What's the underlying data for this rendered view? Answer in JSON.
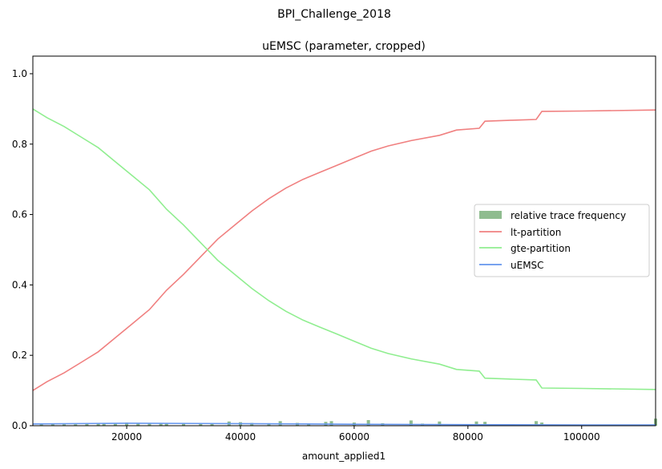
{
  "chart_data": {
    "type": "line",
    "suptitle": "BPI_Challenge_2018",
    "title": "uEMSC (parameter, cropped)",
    "xlabel": "amount_applied1",
    "ylabel": "",
    "xlim": [
      3500,
      113000
    ],
    "ylim": [
      0,
      1.05
    ],
    "xticks": [
      20000,
      40000,
      60000,
      80000,
      100000
    ],
    "xtick_labels": [
      "20000",
      "40000",
      "60000",
      "80000",
      "100000"
    ],
    "yticks": [
      0.0,
      0.2,
      0.4,
      0.6,
      0.8,
      1.0
    ],
    "ytick_labels": [
      "0.0",
      "0.2",
      "0.4",
      "0.6",
      "0.8",
      "1.0"
    ],
    "grid": false,
    "legend_position": "center-right",
    "series": [
      {
        "name": "lt-partition",
        "color": "#f08080",
        "x": [
          3500,
          6000,
          9000,
          12000,
          15000,
          18000,
          21000,
          24000,
          27000,
          30000,
          33000,
          36000,
          39000,
          42000,
          45000,
          48000,
          51000,
          54000,
          57000,
          60000,
          63000,
          66000,
          70000,
          75000,
          78000,
          82000,
          83000,
          88000,
          92000,
          93000,
          100000,
          113000
        ],
        "y": [
          0.1,
          0.125,
          0.15,
          0.18,
          0.21,
          0.25,
          0.29,
          0.33,
          0.385,
          0.43,
          0.48,
          0.53,
          0.57,
          0.61,
          0.645,
          0.675,
          0.7,
          0.72,
          0.74,
          0.76,
          0.78,
          0.795,
          0.81,
          0.825,
          0.84,
          0.845,
          0.865,
          0.868,
          0.87,
          0.893,
          0.894,
          0.897
        ]
      },
      {
        "name": "gte-partition",
        "color": "#90ee90",
        "x": [
          3500,
          6000,
          9000,
          12000,
          15000,
          18000,
          21000,
          24000,
          27000,
          30000,
          33000,
          36000,
          39000,
          42000,
          45000,
          48000,
          51000,
          54000,
          57000,
          60000,
          63000,
          66000,
          70000,
          75000,
          78000,
          82000,
          83000,
          88000,
          92000,
          93000,
          100000,
          113000
        ],
        "y": [
          0.9,
          0.875,
          0.85,
          0.82,
          0.79,
          0.75,
          0.71,
          0.67,
          0.615,
          0.57,
          0.52,
          0.47,
          0.43,
          0.39,
          0.355,
          0.325,
          0.3,
          0.28,
          0.26,
          0.24,
          0.22,
          0.205,
          0.19,
          0.175,
          0.16,
          0.155,
          0.135,
          0.132,
          0.13,
          0.107,
          0.106,
          0.103
        ]
      },
      {
        "name": "uEMSC",
        "color": "#6495ed",
        "x": [
          3500,
          20000,
          40000,
          60000,
          80000,
          100000,
          113000
        ],
        "y": [
          0.005,
          0.007,
          0.006,
          0.004,
          0.003,
          0.002,
          0.002
        ]
      }
    ],
    "histogram": {
      "name": "relative trace frequency",
      "color": "#8fbc8f",
      "x": [
        5000,
        7000,
        9000,
        11000,
        13000,
        15000,
        16000,
        18000,
        20000,
        22000,
        24000,
        26000,
        27000,
        30000,
        33000,
        35000,
        38000,
        40000,
        42000,
        45000,
        47000,
        50000,
        52000,
        55000,
        56000,
        60000,
        62500,
        65000,
        70000,
        72000,
        75000,
        81500,
        83000,
        92000,
        93000,
        113000
      ],
      "values": [
        0.004,
        0.005,
        0.004,
        0.004,
        0.005,
        0.006,
        0.008,
        0.006,
        0.009,
        0.007,
        0.007,
        0.008,
        0.007,
        0.008,
        0.006,
        0.007,
        0.012,
        0.01,
        0.008,
        0.007,
        0.013,
        0.008,
        0.006,
        0.011,
        0.013,
        0.009,
        0.016,
        0.007,
        0.015,
        0.006,
        0.012,
        0.012,
        0.011,
        0.013,
        0.009,
        0.02
      ]
    }
  }
}
